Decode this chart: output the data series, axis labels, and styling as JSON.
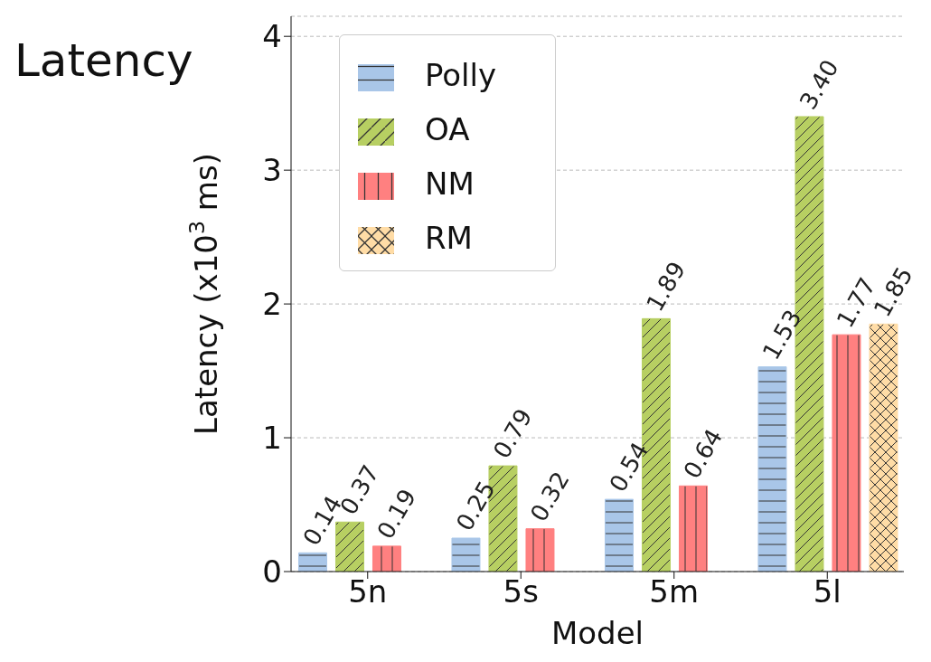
{
  "chart_data": {
    "type": "bar",
    "title": "Latency",
    "xlabel": "Model",
    "ylabel": "Latency (x10$^{3}$ ms)",
    "categories": [
      "5n",
      "5s",
      "5m",
      "5l"
    ],
    "series": [
      {
        "name": "Polly",
        "color": "#a9c6e8",
        "values": [
          0.14,
          0.25,
          0.54,
          1.53
        ],
        "value_labels": [
          "0.14",
          "0.25",
          "0.54",
          "1.53"
        ]
      },
      {
        "name": "OA",
        "color": "#b7cf62",
        "values": [
          0.37,
          0.79,
          1.89,
          3.4
        ],
        "value_labels": [
          "0.37",
          "0.79",
          "1.89",
          "3.40"
        ]
      },
      {
        "name": "NM",
        "color": "#ff8080",
        "values": [
          0.19,
          0.32,
          0.64,
          1.77
        ],
        "value_labels": [
          "0.19",
          "0.32",
          "0.64",
          "1.77"
        ]
      },
      {
        "name": "RM",
        "color": "#ffdca6",
        "values": [
          null,
          null,
          null,
          1.85
        ],
        "value_labels": [
          null,
          null,
          null,
          "1.85"
        ]
      }
    ],
    "ylim": [
      0,
      4.15
    ],
    "yticks": [
      0,
      1,
      2,
      3,
      4
    ],
    "grid": "y",
    "legend": "top left"
  }
}
